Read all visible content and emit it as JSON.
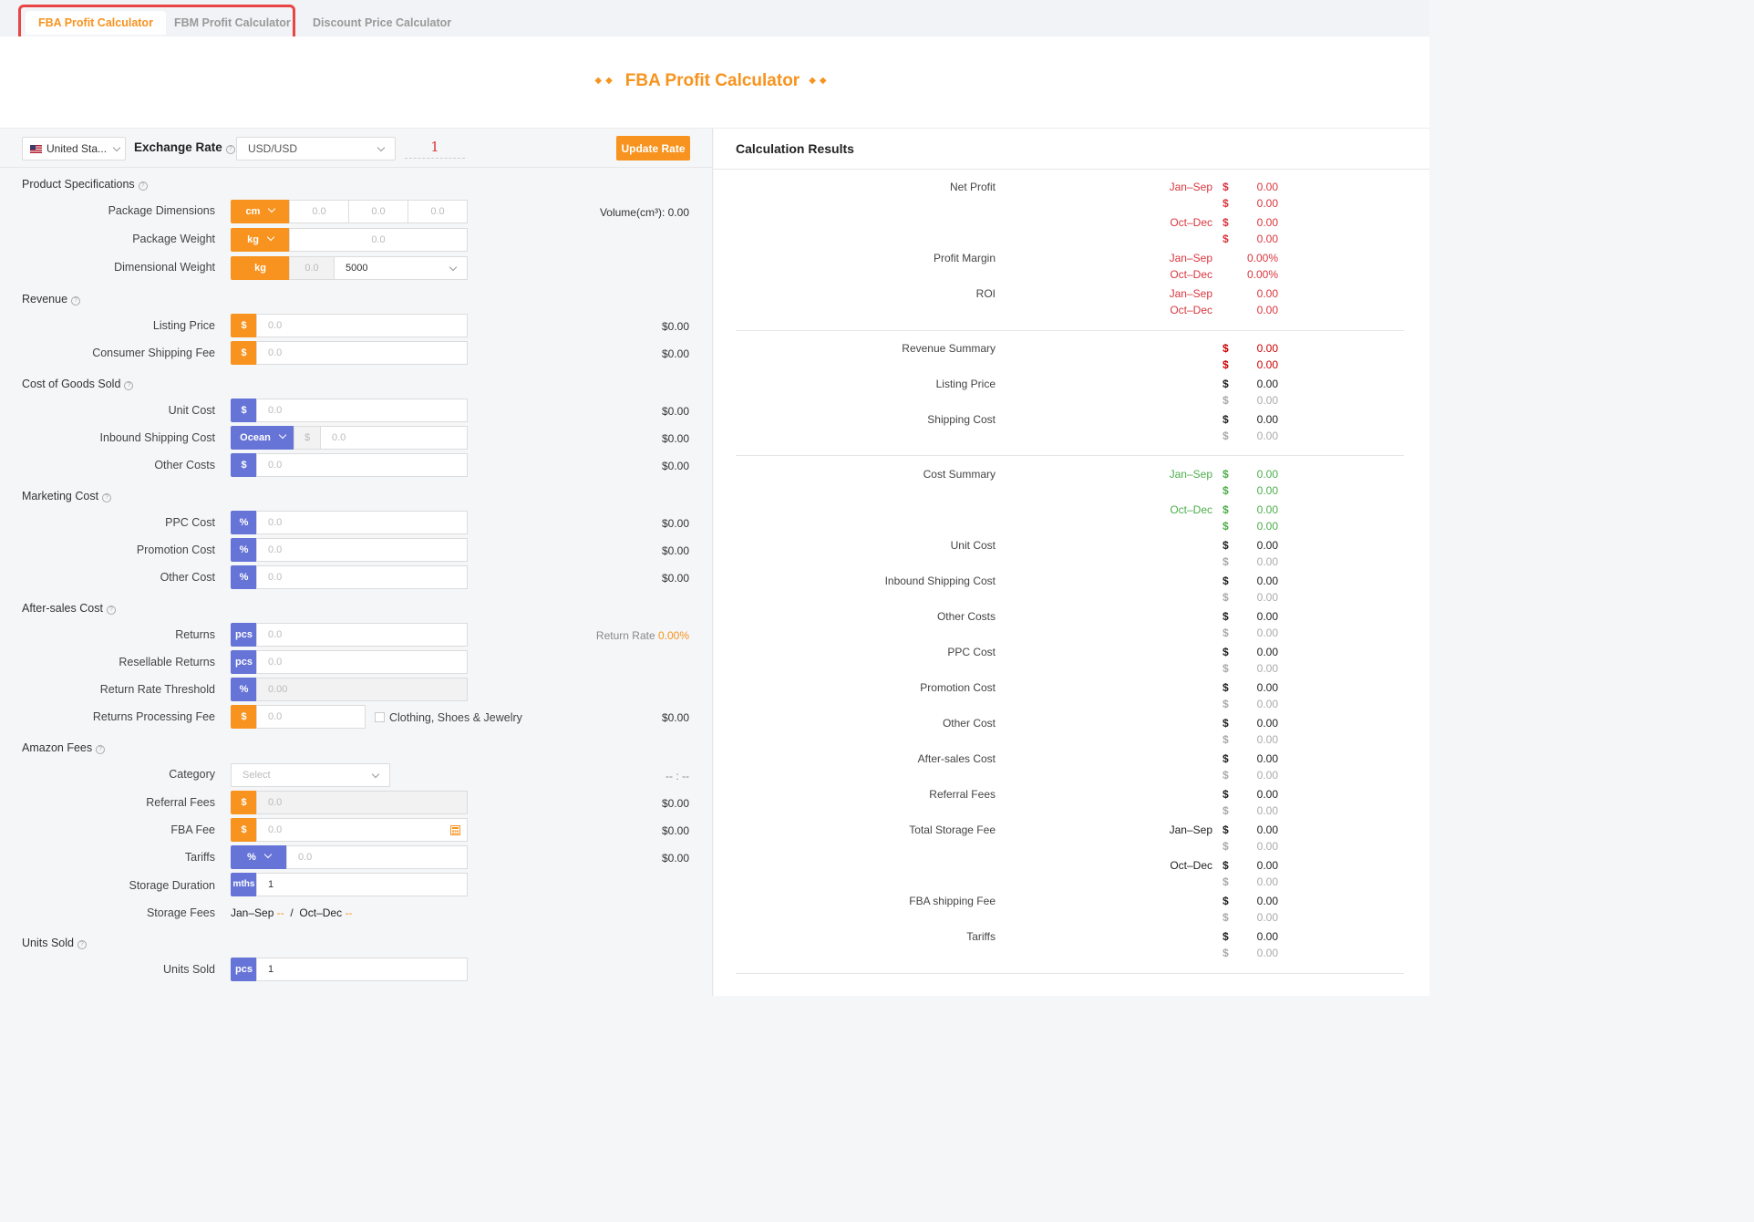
{
  "tabs": [
    {
      "label": "FBA Profit Calculator"
    },
    {
      "label": "FBM Profit Calculator"
    },
    {
      "label": "Discount Price Calculator"
    }
  ],
  "title": "FBA Profit Calculator",
  "title_decor": "◆◆",
  "colors": {
    "accent": "#f7931e",
    "blue": "#6674d8",
    "red": "#d9363e",
    "green": "#4cae4c"
  },
  "toolbar": {
    "country": "United Sta...",
    "exchange_label": "Exchange Rate",
    "currency": "USD/USD",
    "rate": "1",
    "update_label": "Update Rate"
  },
  "sections": {
    "product": "Product Specifications",
    "revenue": "Revenue",
    "cogs": "Cost of Goods Sold",
    "marketing": "Marketing Cost",
    "aftersales": "After-sales Cost",
    "amazon": "Amazon Fees",
    "units": "Units Sold"
  },
  "product": {
    "dims_label": "Package Dimensions",
    "dims_unit": "cm",
    "dims_vals": [
      "0.0",
      "0.0",
      "0.0"
    ],
    "volume": "Volume(cm³): 0.00",
    "weight_label": "Package Weight",
    "weight_unit": "kg",
    "weight_val": "0.0",
    "dimw_label": "Dimensional Weight",
    "dimw_unit": "kg",
    "dimw_val": "0.0",
    "divisor": "5000"
  },
  "revenue": {
    "listing_label": "Listing Price",
    "listing_pre": "$",
    "listing_val": "0.0",
    "listing_amt": "$0.00",
    "ship_label": "Consumer Shipping Fee",
    "ship_pre": "$",
    "ship_val": "0.0",
    "ship_amt": "$0.00"
  },
  "cogs": {
    "unit_label": "Unit Cost",
    "unit_pre": "$",
    "unit_val": "0.0",
    "unit_amt": "$0.00",
    "inbound_label": "Inbound Shipping Cost",
    "inbound_mode": "Ocean",
    "inbound_cur": "$",
    "inbound_val": "0.0",
    "inbound_amt": "$0.00",
    "other_label": "Other Costs",
    "other_pre": "$",
    "other_val": "0.0",
    "other_amt": "$0.00"
  },
  "marketing": {
    "ppc_label": "PPC Cost",
    "ppc_pre": "%",
    "ppc_val": "0.0",
    "ppc_amt": "$0.00",
    "promo_label": "Promotion Cost",
    "promo_pre": "%",
    "promo_val": "0.0",
    "promo_amt": "$0.00",
    "other_label": "Other Cost",
    "other_pre": "%",
    "other_val": "0.0",
    "other_amt": "$0.00"
  },
  "aftersales": {
    "returns_label": "Returns",
    "returns_pre": "pcs",
    "returns_val": "0.0",
    "return_rate_label": "Return Rate",
    "return_rate": "0.00%",
    "resell_label": "Resellable Returns",
    "resell_pre": "pcs",
    "resell_val": "0.0",
    "threshold_label": "Return Rate Threshold",
    "threshold_pre": "%",
    "threshold_val": "0.00",
    "proc_label": "Returns Processing Fee",
    "proc_pre": "$",
    "proc_val": "0.0",
    "proc_check": "Clothing, Shoes & Jewelry",
    "proc_amt": "$0.00"
  },
  "amazon": {
    "cat_label": "Category",
    "cat_placeholder": "Select",
    "cat_amt": "-- : --",
    "ref_label": "Referral Fees",
    "ref_pre": "$",
    "ref_val": "0.0",
    "ref_amt": "$0.00",
    "fba_label": "FBA Fee",
    "fba_pre": "$",
    "fba_val": "0.0",
    "fba_amt": "$0.00",
    "tariff_label": "Tariffs",
    "tariff_pre": "%",
    "tariff_val": "0.0",
    "tariff_amt": "$0.00",
    "dur_label": "Storage Duration",
    "dur_pre": "mths",
    "dur_val": "1",
    "fees_label": "Storage Fees",
    "fees_jan": "Jan–Sep",
    "fees_jan_val": "--",
    "fees_sep": "/",
    "fees_oct": "Oct–Dec",
    "fees_oct_val": "--"
  },
  "units": {
    "label": "Units Sold",
    "pre": "pcs",
    "val": "1"
  },
  "results": {
    "title": "Calculation Results",
    "net_profit": "Net Profit",
    "profit_margin": "Profit Margin",
    "roi": "ROI",
    "jan": "Jan–Sep",
    "oct": "Oct–Dec",
    "cur": "$",
    "zero": "0.00",
    "zero_pct": "0.00%",
    "revenue_summary": "Revenue Summary",
    "listing_price": "Listing Price",
    "shipping_cost": "Shipping Cost",
    "cost_summary": "Cost Summary",
    "unit_cost": "Unit Cost",
    "inbound": "Inbound Shipping Cost",
    "other_costs": "Other Costs",
    "ppc": "PPC Cost",
    "promo": "Promotion Cost",
    "other_cost": "Other Cost",
    "aftersales": "After-sales Cost",
    "referral": "Referral Fees",
    "storage": "Total Storage Fee",
    "fba_ship": "FBA shipping Fee",
    "tariffs": "Tariffs"
  }
}
